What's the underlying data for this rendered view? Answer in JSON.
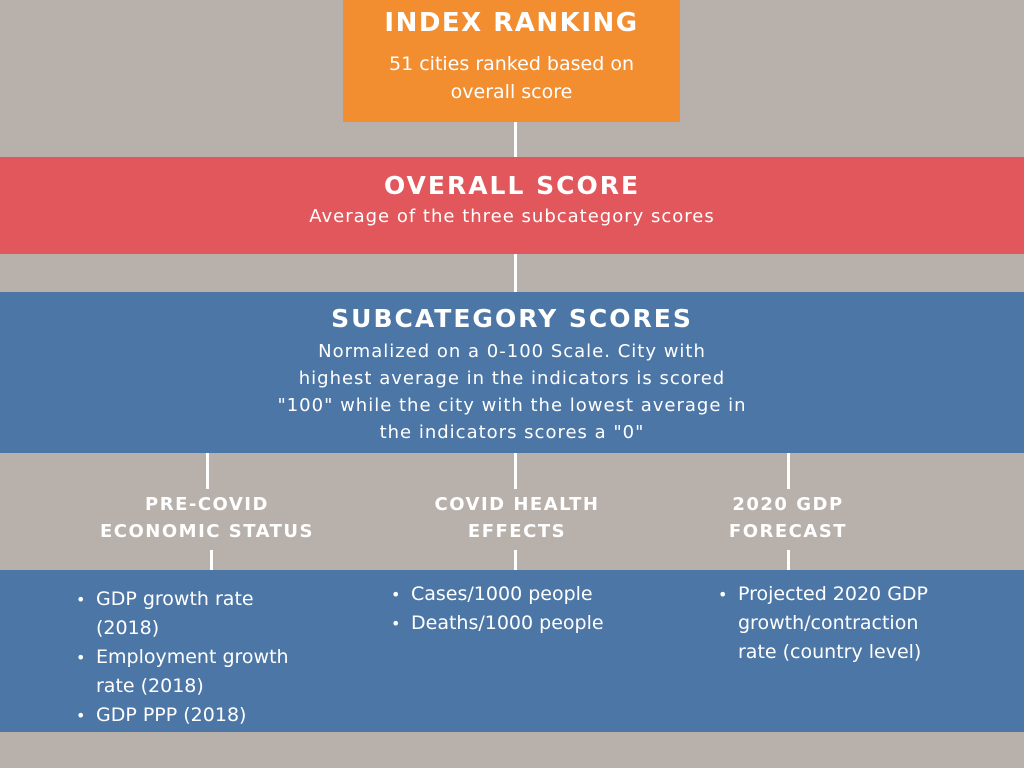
{
  "index": {
    "title": "INDEX RANKING",
    "desc_line1": "51 cities ranked based on",
    "desc_line2": "overall score"
  },
  "overall": {
    "title": "OVERALL SCORE",
    "desc": "Average of the three subcategory scores"
  },
  "subcategory": {
    "title": "SUBCATEGORY SCORES",
    "desc_lines": [
      "Normalized on a 0-100 Scale. City with",
      "highest average in the indicators is scored",
      "\"100\" while the city with the lowest average in",
      "the indicators scores a \"0\""
    ]
  },
  "categories": [
    {
      "heading_lines": [
        "PRE-COVID",
        "ECONOMIC STATUS"
      ],
      "bullets": [
        [
          "GDP growth rate",
          "(2018)"
        ],
        [
          "Employment growth",
          "rate (2018)"
        ],
        [
          "GDP PPP (2018)"
        ]
      ]
    },
    {
      "heading_lines": [
        "COVID HEALTH",
        "EFFECTS"
      ],
      "bullets": [
        [
          "Cases/1000 people"
        ],
        [
          "Deaths/1000 people"
        ]
      ]
    },
    {
      "heading_lines": [
        "2020 GDP",
        "FORECAST"
      ],
      "bullets": [
        [
          "Projected 2020 GDP",
          "growth/contraction",
          "rate (country level)"
        ]
      ]
    }
  ],
  "colors": {
    "background": "#b8b0ab",
    "index_box": "#f28d30",
    "overall_band": "#e1575c",
    "subcategory_band": "#4c76a5",
    "text": "#ffffff"
  }
}
